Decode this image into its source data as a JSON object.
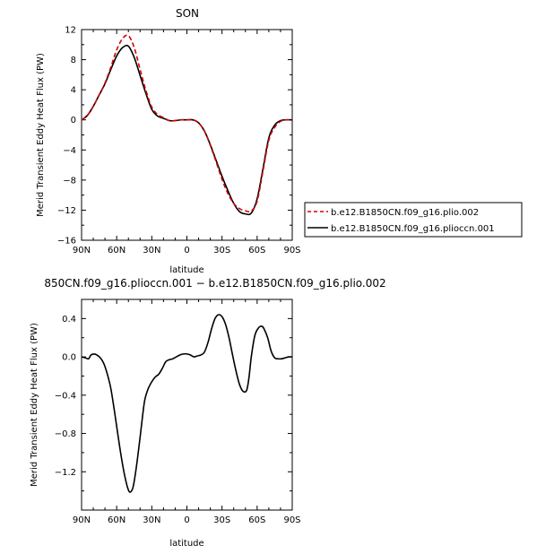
{
  "chart_data": [
    {
      "type": "line",
      "title": "SON",
      "xlabel": "latitude",
      "ylabel": "Merid Transient Eddy Heat Flux (PW)",
      "xlim": [
        90,
        -90
      ],
      "ylim": [
        -16,
        12
      ],
      "x_ticks": [
        "90N",
        "60N",
        "30N",
        "0",
        "30S",
        "60S",
        "90S"
      ],
      "y_ticks": [
        "12",
        "8",
        "4",
        "0",
        "−4",
        "−8",
        "−12",
        "−16"
      ],
      "legend_placement": "right",
      "series": [
        {
          "name": "b.e12.B1850CN.f09_g16.plio.002",
          "color": "#d40000",
          "dash": "dashed",
          "x": [
            90,
            85,
            80,
            75,
            70,
            65,
            60,
            55,
            50,
            45,
            40,
            35,
            30,
            25,
            20,
            15,
            10,
            5,
            0,
            -5,
            -10,
            -15,
            -20,
            -25,
            -30,
            -35,
            -40,
            -45,
            -50,
            -55,
            -60,
            -65,
            -70,
            -75,
            -80,
            -85,
            -90
          ],
          "y": [
            0,
            0.6,
            1.8,
            3.3,
            4.9,
            7.0,
            9.3,
            10.8,
            11.2,
            9.6,
            6.7,
            3.9,
            1.7,
            0.7,
            0.3,
            -0.1,
            -0.1,
            0.0,
            0.0,
            0.0,
            -0.4,
            -1.5,
            -3.4,
            -5.6,
            -7.9,
            -9.8,
            -11.1,
            -11.8,
            -12.1,
            -12.1,
            -10.8,
            -6.8,
            -2.7,
            -1.0,
            -0.2,
            0.0,
            0.0
          ]
        },
        {
          "name": "b.e12.B1850CN.f09_g16.plioccn.001",
          "color": "#000000",
          "dash": "solid",
          "x": [
            90,
            85,
            80,
            75,
            70,
            65,
            60,
            55,
            50,
            45,
            40,
            35,
            30,
            25,
            20,
            15,
            10,
            5,
            0,
            -5,
            -10,
            -15,
            -20,
            -25,
            -30,
            -35,
            -40,
            -45,
            -50,
            -55,
            -60,
            -65,
            -70,
            -75,
            -80,
            -85,
            -90
          ],
          "y": [
            0,
            0.6,
            1.8,
            3.3,
            4.8,
            6.7,
            8.5,
            9.6,
            9.8,
            8.3,
            5.9,
            3.5,
            1.4,
            0.5,
            0.2,
            -0.1,
            -0.1,
            0.0,
            0.0,
            0.0,
            -0.4,
            -1.5,
            -3.3,
            -5.4,
            -7.5,
            -9.4,
            -11.1,
            -12.2,
            -12.5,
            -12.4,
            -10.5,
            -6.5,
            -2.4,
            -0.7,
            -0.1,
            0.0,
            0.0
          ]
        }
      ]
    },
    {
      "type": "line",
      "title": "850CN.f09_g16.plioccn.001 − b.e12.B1850CN.f09_g16.plio.002",
      "xlabel": "latitude",
      "ylabel": "Merid Transient Eddy Heat Flux (PW)",
      "xlim": [
        90,
        -90
      ],
      "ylim": [
        -1.6,
        0.6
      ],
      "x_ticks": [
        "90N",
        "60N",
        "30N",
        "0",
        "30S",
        "60S",
        "90S"
      ],
      "y_ticks": [
        "0.4",
        "0.0",
        "−0.4",
        "−0.8",
        "−1.2"
      ],
      "series": [
        {
          "color": "#000000",
          "dash": "solid",
          "x": [
            90,
            87,
            84,
            82,
            79,
            77,
            74,
            71,
            68,
            65,
            62,
            59,
            56,
            53,
            50,
            48,
            46,
            44,
            42,
            40,
            38,
            36,
            33,
            30,
            27,
            24,
            21,
            18,
            15,
            12,
            9,
            6,
            3,
            0,
            -3,
            -6,
            -9,
            -12,
            -15,
            -18,
            -21,
            -24,
            -27,
            -30,
            -33,
            -36,
            -39,
            -42,
            -45,
            -48,
            -51,
            -53,
            -55,
            -58,
            -61,
            -64,
            -66,
            -69,
            -72,
            -75,
            -78,
            -81,
            -84,
            -87,
            -90
          ],
          "y": [
            0.0,
            -0.01,
            -0.02,
            0.02,
            0.03,
            0.02,
            -0.01,
            -0.07,
            -0.18,
            -0.33,
            -0.56,
            -0.81,
            -1.05,
            -1.25,
            -1.39,
            -1.41,
            -1.36,
            -1.22,
            -1.04,
            -0.84,
            -0.63,
            -0.45,
            -0.33,
            -0.26,
            -0.21,
            -0.18,
            -0.12,
            -0.05,
            -0.03,
            -0.02,
            0.0,
            0.02,
            0.03,
            0.03,
            0.02,
            0.0,
            0.01,
            0.02,
            0.05,
            0.15,
            0.29,
            0.4,
            0.44,
            0.42,
            0.34,
            0.2,
            0.02,
            -0.15,
            -0.29,
            -0.36,
            -0.35,
            -0.22,
            0.0,
            0.22,
            0.3,
            0.32,
            0.29,
            0.2,
            0.06,
            -0.01,
            -0.02,
            -0.02,
            -0.01,
            0.0,
            0.0
          ]
        }
      ]
    }
  ]
}
